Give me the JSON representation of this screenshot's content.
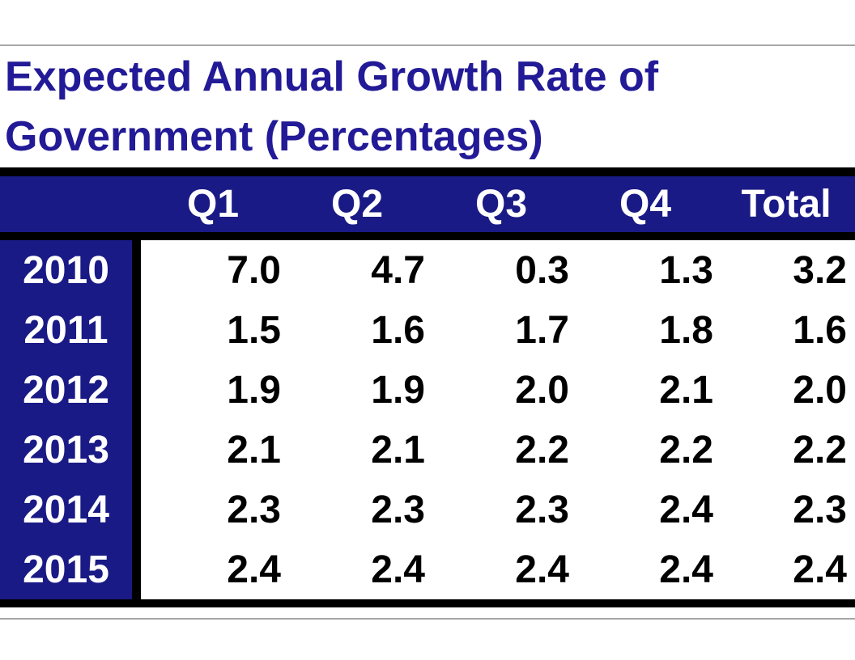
{
  "colors": {
    "navy_band": "#1a1a86",
    "title_text": "#221a96",
    "grid_black": "#000000",
    "hairline_gray": "#a6a6a6",
    "header_text": "#ffffff",
    "cell_text": "#000000",
    "page_bg": "#ffffff"
  },
  "title": {
    "line1": "Expected Annual Growth Rate of",
    "line2": "Government (Percentages)"
  },
  "table": {
    "header": [
      "",
      "Q1",
      "Q2",
      "Q3",
      "Q4",
      "Total"
    ],
    "rows": [
      {
        "year": "2010",
        "cells": [
          "7.0",
          "4.7",
          "0.3",
          "1.3",
          "3.2"
        ]
      },
      {
        "year": "2011",
        "cells": [
          "1.5",
          "1.6",
          "1.7",
          "1.8",
          "1.6"
        ]
      },
      {
        "year": "2012",
        "cells": [
          "1.9",
          "1.9",
          "2.0",
          "2.1",
          "2.0"
        ]
      },
      {
        "year": "2013",
        "cells": [
          "2.1",
          "2.1",
          "2.2",
          "2.2",
          "2.2"
        ]
      },
      {
        "year": "2014",
        "cells": [
          "2.3",
          "2.3",
          "2.3",
          "2.4",
          "2.3"
        ]
      },
      {
        "year": "2015",
        "cells": [
          "2.4",
          "2.4",
          "2.4",
          "2.4",
          "2.4"
        ]
      }
    ]
  },
  "chart_data": {
    "type": "table",
    "title": "Expected Annual Growth Rate of Government (Percentages)",
    "columns": [
      "Q1",
      "Q2",
      "Q3",
      "Q4",
      "Total"
    ],
    "row_labels": [
      "2010",
      "2011",
      "2012",
      "2013",
      "2014",
      "2015"
    ],
    "values": [
      [
        7.0,
        4.7,
        0.3,
        1.3,
        3.2
      ],
      [
        1.5,
        1.6,
        1.7,
        1.8,
        1.6
      ],
      [
        1.9,
        1.9,
        2.0,
        2.1,
        2.0
      ],
      [
        2.1,
        2.1,
        2.2,
        2.2,
        2.2
      ],
      [
        2.3,
        2.3,
        2.3,
        2.4,
        2.3
      ],
      [
        2.4,
        2.4,
        2.4,
        2.4,
        2.4
      ]
    ],
    "layout": {
      "header_style": "navy band, white bold text",
      "row_label_style": "navy band, white bold text",
      "grid": "thick black horizontal rules, black divider after row labels"
    }
  }
}
